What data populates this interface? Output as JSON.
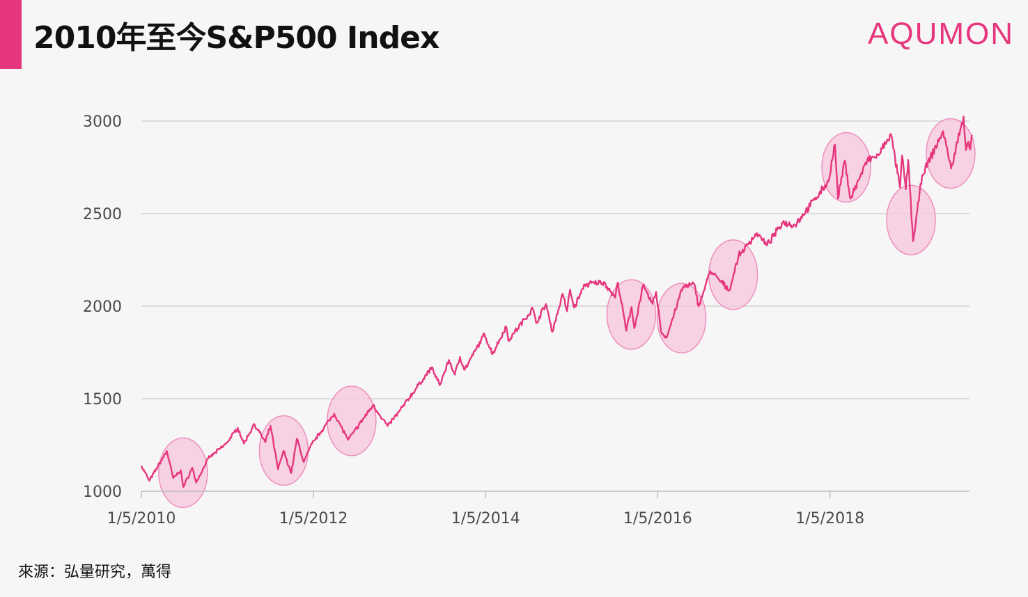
{
  "header": {
    "title": "2010年至今S&P500 Index",
    "logo": "AQUMON"
  },
  "footer": {
    "source": "來源：弘量研究，萬得"
  },
  "colors": {
    "accent": "#e6367d",
    "line": "#e6367d",
    "highlight_fill": "#f5c6dc",
    "highlight_stroke": "#ee8fbc",
    "grid": "#d4d4d4"
  },
  "chart_data": {
    "type": "line",
    "title": "2010年至今S&P500 Index",
    "xlabel": "",
    "ylabel": "",
    "ylim": [
      1000,
      3000
    ],
    "xlim": [
      "2010-01-05",
      "2019-08-31"
    ],
    "grid": true,
    "x_ticks": [
      "1/5/2010",
      "1/5/2012",
      "1/5/2014",
      "1/5/2016",
      "1/5/2018"
    ],
    "y_ticks": [
      1000,
      1500,
      2000,
      2500,
      3000
    ],
    "series": [
      {
        "points": [
          [
            "2010-01-05",
            1137
          ],
          [
            "2010-02-08",
            1057
          ],
          [
            "2010-04-23",
            1217
          ],
          [
            "2010-05-20",
            1071
          ],
          [
            "2010-06-21",
            1113
          ],
          [
            "2010-07-02",
            1022
          ],
          [
            "2010-08-09",
            1127
          ],
          [
            "2010-08-26",
            1047
          ],
          [
            "2010-10-15",
            1176
          ],
          [
            "2010-12-31",
            1258
          ],
          [
            "2011-02-18",
            1343
          ],
          [
            "2011-03-16",
            1257
          ],
          [
            "2011-04-29",
            1363
          ],
          [
            "2011-06-15",
            1265
          ],
          [
            "2011-07-07",
            1353
          ],
          [
            "2011-08-08",
            1119
          ],
          [
            "2011-08-31",
            1218
          ],
          [
            "2011-10-03",
            1099
          ],
          [
            "2011-10-27",
            1284
          ],
          [
            "2011-11-25",
            1158
          ],
          [
            "2011-12-30",
            1257
          ],
          [
            "2012-04-02",
            1419
          ],
          [
            "2012-06-01",
            1278
          ],
          [
            "2012-09-14",
            1465
          ],
          [
            "2012-11-15",
            1353
          ],
          [
            "2012-12-31",
            1426
          ],
          [
            "2013-05-21",
            1669
          ],
          [
            "2013-06-24",
            1573
          ],
          [
            "2013-08-02",
            1709
          ],
          [
            "2013-08-27",
            1630
          ],
          [
            "2013-09-18",
            1725
          ],
          [
            "2013-10-08",
            1656
          ],
          [
            "2013-12-31",
            1848
          ],
          [
            "2014-02-03",
            1742
          ],
          [
            "2014-04-02",
            1890
          ],
          [
            "2014-04-11",
            1815
          ],
          [
            "2014-07-24",
            1987
          ],
          [
            "2014-08-07",
            1910
          ],
          [
            "2014-09-18",
            2011
          ],
          [
            "2014-10-15",
            1862
          ],
          [
            "2014-11-28",
            2067
          ],
          [
            "2014-12-16",
            1972
          ],
          [
            "2014-12-29",
            2090
          ],
          [
            "2015-01-15",
            1992
          ],
          [
            "2015-03-02",
            2117
          ],
          [
            "2015-05-21",
            2130
          ],
          [
            "2015-07-08",
            2046
          ],
          [
            "2015-07-20",
            2128
          ],
          [
            "2015-08-25",
            1867
          ],
          [
            "2015-09-16",
            1995
          ],
          [
            "2015-09-28",
            1881
          ],
          [
            "2015-11-03",
            2109
          ],
          [
            "2015-12-14",
            2012
          ],
          [
            "2015-12-29",
            2078
          ],
          [
            "2016-01-20",
            1859
          ],
          [
            "2016-02-11",
            1829
          ],
          [
            "2016-04-20",
            2102
          ],
          [
            "2016-06-08",
            2119
          ],
          [
            "2016-06-27",
            2000
          ],
          [
            "2016-08-15",
            2190
          ],
          [
            "2016-11-04",
            2085
          ],
          [
            "2016-12-13",
            2271
          ],
          [
            "2017-03-01",
            2395
          ],
          [
            "2017-04-13",
            2328
          ],
          [
            "2017-06-19",
            2453
          ],
          [
            "2017-08-10",
            2438
          ],
          [
            "2017-10-31",
            2575
          ],
          [
            "2017-12-29",
            2673
          ],
          [
            "2018-01-26",
            2872
          ],
          [
            "2018-02-08",
            2581
          ],
          [
            "2018-03-09",
            2786
          ],
          [
            "2018-04-02",
            2581
          ],
          [
            "2018-06-12",
            2786
          ],
          [
            "2018-07-31",
            2816
          ],
          [
            "2018-09-20",
            2930
          ],
          [
            "2018-10-29",
            2641
          ],
          [
            "2018-11-07",
            2813
          ],
          [
            "2018-11-23",
            2632
          ],
          [
            "2018-12-03",
            2790
          ],
          [
            "2018-12-24",
            2351
          ],
          [
            "2019-01-31",
            2704
          ],
          [
            "2019-04-30",
            2945
          ],
          [
            "2019-06-03",
            2744
          ],
          [
            "2019-07-26",
            3025
          ],
          [
            "2019-08-05",
            2844
          ],
          [
            "2019-08-12",
            2883
          ],
          [
            "2019-08-16",
            2888
          ],
          [
            "2019-08-23",
            2847
          ],
          [
            "2019-08-30",
            2926
          ]
        ]
      }
    ],
    "highlights": [
      {
        "period_center": "2010-07-01",
        "value_center": 1100
      },
      {
        "period_center": "2011-09-01",
        "value_center": 1220
      },
      {
        "period_center": "2012-06-15",
        "value_center": 1380
      },
      {
        "period_center": "2015-09-15",
        "value_center": 1955
      },
      {
        "period_center": "2016-04-15",
        "value_center": 1935
      },
      {
        "period_center": "2016-11-20",
        "value_center": 2170
      },
      {
        "period_center": "2018-03-15",
        "value_center": 2750
      },
      {
        "period_center": "2018-12-15",
        "value_center": 2465
      },
      {
        "period_center": "2019-06-01",
        "value_center": 2825
      }
    ]
  }
}
